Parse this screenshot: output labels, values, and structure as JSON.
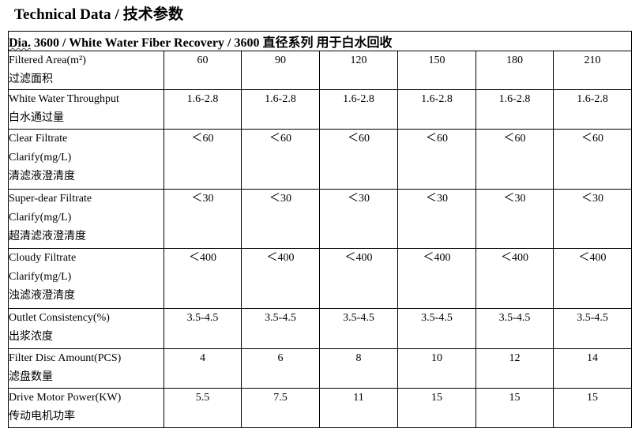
{
  "heading": "Technical Data /  技术参数",
  "table": {
    "caption_dia": "Dia.",
    "caption_rest": " 3600 / White Water Fiber Recovery / 3600 直径系列 用于白水回收",
    "rows": [
      {
        "label": [
          "Filtered Area(m²)",
          "过滤面积"
        ],
        "values": [
          "60",
          "90",
          "120",
          "150",
          "180",
          "210"
        ]
      },
      {
        "label": [
          "White Water Throughput",
          "白水通过量"
        ],
        "values": [
          "1.6-2.8",
          "1.6-2.8",
          "1.6-2.8",
          "1.6-2.8",
          "1.6-2.8",
          "1.6-2.8"
        ]
      },
      {
        "label": [
          "Clear Filtrate",
          "Clarify(mg/L)",
          "清滤液澄清度"
        ],
        "values": [
          "＜60",
          "＜60",
          "＜60",
          "＜60",
          "＜60",
          "＜60"
        ]
      },
      {
        "label": [
          "Super-dear Filtrate",
          "Clarify(mg/L)",
          "超清滤液澄清度"
        ],
        "values": [
          "＜30",
          "＜30",
          "＜30",
          "＜30",
          "＜30",
          "＜30"
        ]
      },
      {
        "label": [
          "Cloudy Filtrate",
          "Clarify(mg/L)",
          "浊滤液澄清度"
        ],
        "values": [
          "＜400",
          "＜400",
          "＜400",
          "＜400",
          "＜400",
          "＜400"
        ]
      },
      {
        "label": [
          "Outlet Consistency(%)",
          "出浆浓度"
        ],
        "values": [
          "3.5-4.5",
          "3.5-4.5",
          "3.5-4.5",
          "3.5-4.5",
          "3.5-4.5",
          "3.5-4.5"
        ]
      },
      {
        "label": [
          "Filter Disc Amount(PCS)",
          "滤盘数量"
        ],
        "values": [
          "4",
          "6",
          "8",
          "10",
          "12",
          "14"
        ]
      },
      {
        "label": [
          "Drive Motor Power(KW)",
          "传动电机功率"
        ],
        "values": [
          "5.5",
          "7.5",
          "11",
          "15",
          "15",
          "15"
        ]
      }
    ]
  }
}
